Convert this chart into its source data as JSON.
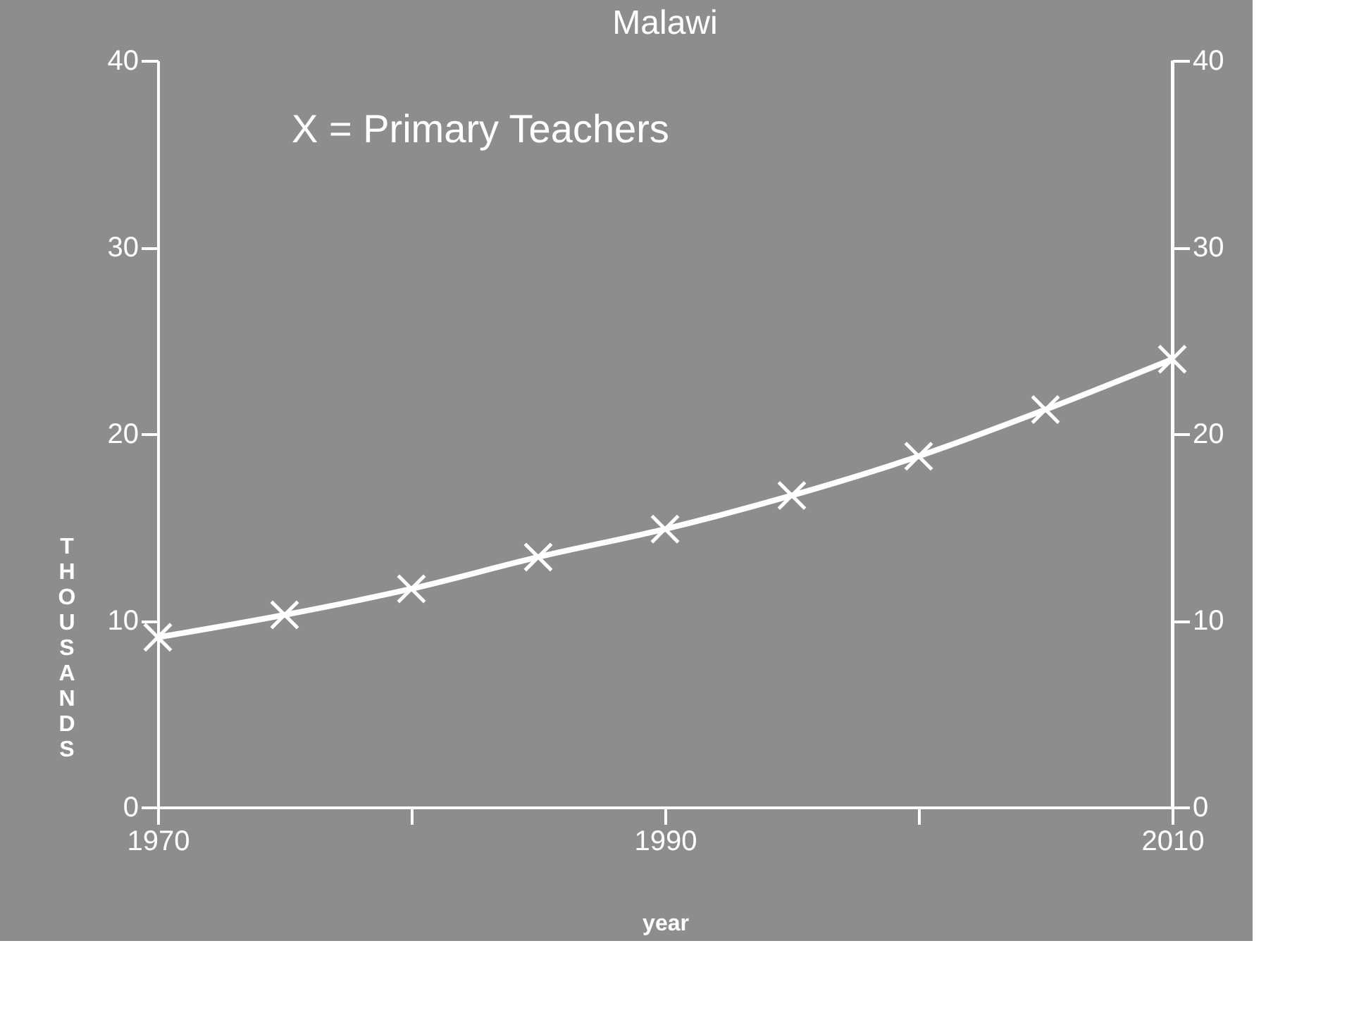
{
  "chart_data": {
    "type": "line",
    "title": "Malawi",
    "xlabel": "year",
    "ylabel": "THOUSANDS",
    "annotations": [
      "X = Primary Teachers"
    ],
    "x": [
      1970,
      1975,
      1980,
      1985,
      1990,
      1995,
      2000,
      2005,
      2010
    ],
    "series": [
      {
        "color": "#ffffff",
        "values": [
          9.1,
          10.3,
          11.7,
          13.4,
          14.9,
          16.7,
          18.8,
          21.3,
          24.0
        ]
      }
    ],
    "xlim": [
      1970,
      2010
    ],
    "xticks": [
      1970,
      {
        "value": 1980,
        "label": null
      },
      1990,
      {
        "value": 2000,
        "label": null
      },
      2010
    ],
    "ylim": [
      0,
      40
    ],
    "yticks": [
      0,
      10,
      20,
      30,
      40
    ],
    "y2lim": [
      0,
      40
    ],
    "y2ticks": [
      0,
      10,
      20,
      30,
      40
    ],
    "grid": false,
    "marker": "cross",
    "line_style": "solid"
  }
}
